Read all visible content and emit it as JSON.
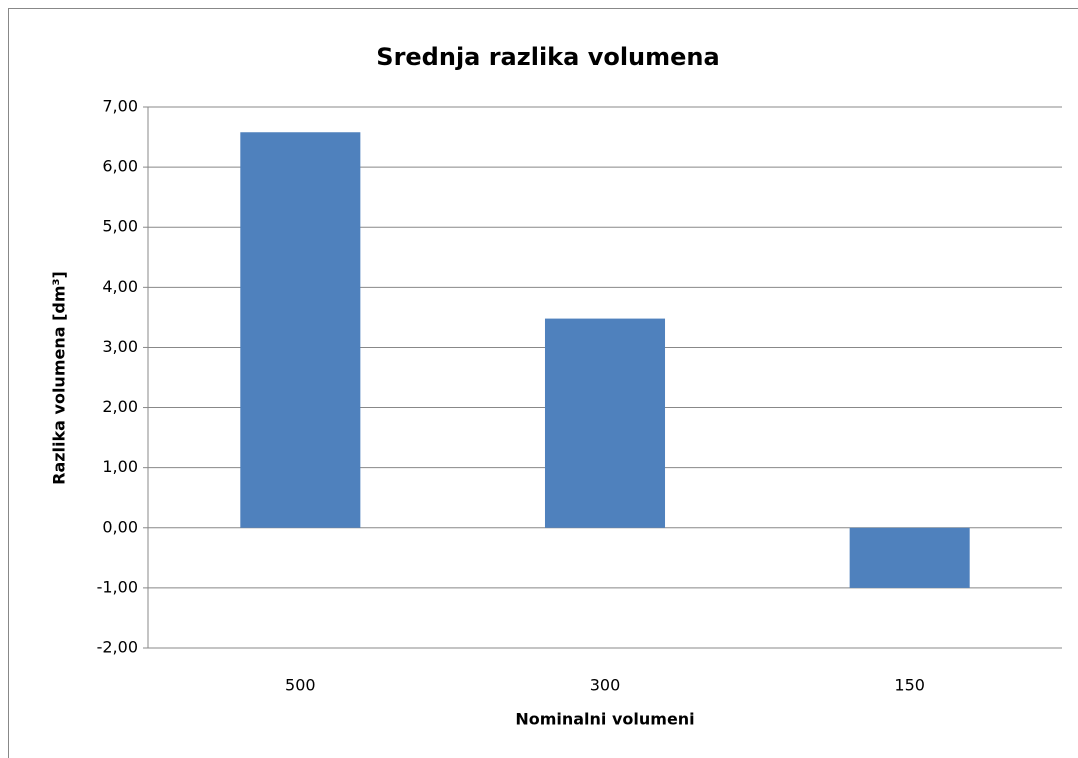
{
  "chart_data": {
    "type": "bar",
    "title": "Srednja razlika volumena",
    "x_label": "Nominalni volumeni",
    "y_label": "Razlika volumena [dm³]",
    "categories": [
      "500",
      "300",
      "150"
    ],
    "values": [
      6.58,
      3.48,
      -1.0
    ],
    "color": "#4f81bd",
    "ylim": [
      -2,
      7
    ],
    "yticks": [
      {
        "value": -2,
        "label": "-2,00"
      },
      {
        "value": -1,
        "label": "-1,00"
      },
      {
        "value": 0,
        "label": "0,00"
      },
      {
        "value": 1,
        "label": "1,00"
      },
      {
        "value": 2,
        "label": "2,00"
      },
      {
        "value": 3,
        "label": "3,00"
      },
      {
        "value": 4,
        "label": "4,00"
      },
      {
        "value": 5,
        "label": "5,00"
      },
      {
        "value": 6,
        "label": "6,00"
      },
      {
        "value": 7,
        "label": "7,00"
      }
    ],
    "grid": true
  }
}
